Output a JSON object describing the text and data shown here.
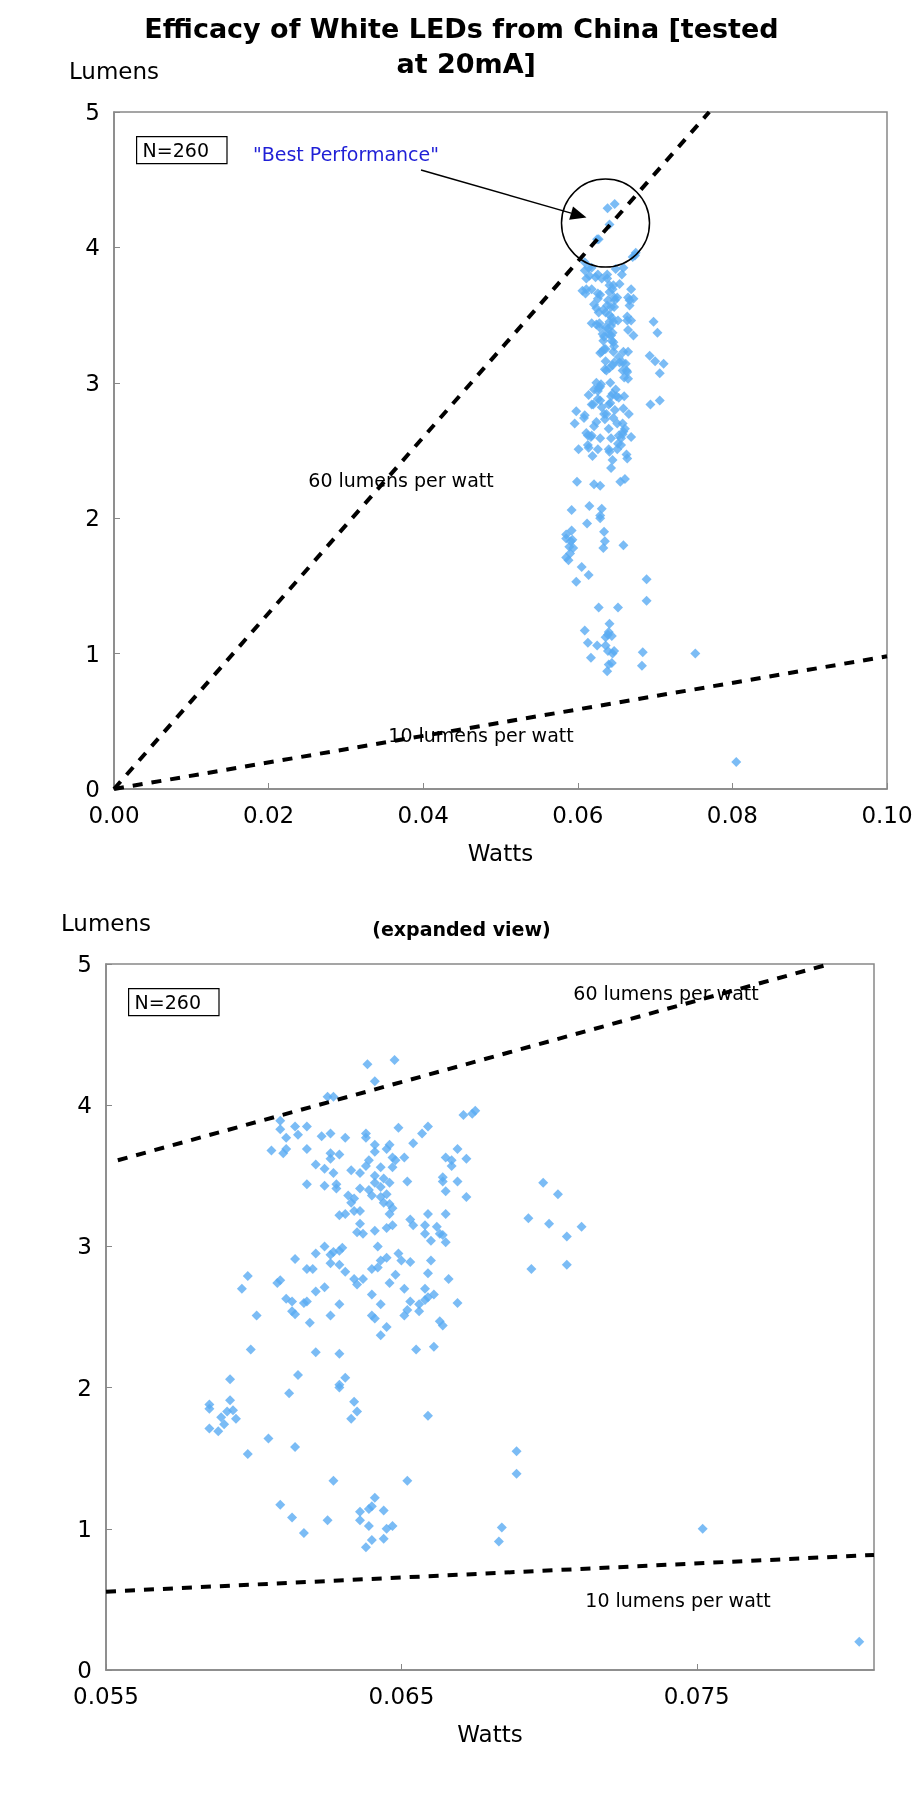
{
  "chart_data": [
    {
      "type": "scatter",
      "title": "Efficacy of White LEDs from China [tested at 20mA]",
      "xlabel": "Watts",
      "ylabel": "Lumens",
      "xlim": [
        0,
        0.1
      ],
      "ylim": [
        0,
        5
      ],
      "xticks": [
        {
          "value": 0,
          "label": "0.00"
        },
        0.02,
        0.04,
        0.06,
        0.08,
        {
          "value": 0.1,
          "label": "0.10"
        }
      ],
      "yticks": [
        0,
        1,
        2,
        3,
        4,
        5
      ],
      "grid": false,
      "marker": "diamond",
      "annotations": [
        "N=260",
        "\"Best Performance\"",
        "60 lumens per watt",
        "10 lumens per watt"
      ],
      "series": [
        {
          "color": "#5aabf2",
          "x": [
            0.06385,
            0.06477,
            0.0641,
            0.0625,
            0.0627,
            0.0609,
            0.0609,
            0.0614,
            0.0618,
            0.0615,
            0.0611,
            0.0606,
            0.0611,
            0.061,
            0.0618,
            0.0623,
            0.0626,
            0.0631,
            0.0638,
            0.0638,
            0.0649,
            0.0659,
            0.0657,
            0.0654,
            0.0671,
            0.0675,
            0.0674,
            0.0626,
            0.0629,
            0.0626,
            0.0621,
            0.0624,
            0.0627,
            0.0633,
            0.0636,
            0.0641,
            0.0641,
            0.0645,
            0.0646,
            0.0639,
            0.0638,
            0.0643,
            0.0647,
            0.0648,
            0.0651,
            0.0647,
            0.0641,
            0.0644,
            0.0646,
            0.0641,
            0.0643,
            0.0639,
            0.064,
            0.0643,
            0.0645,
            0.0644,
            0.0646,
            0.0647,
            0.0646,
            0.0636,
            0.0632,
            0.0634,
            0.0633,
            0.0618,
            0.0624,
            0.0628,
            0.0628,
            0.0652,
            0.0665,
            0.0667,
            0.0667,
            0.0669,
            0.0672,
            0.0664,
            0.0664,
            0.0669,
            0.0665,
            0.0672,
            0.0629,
            0.0631,
            0.0634,
            0.0636,
            0.0636,
            0.0635,
            0.0637,
            0.0641,
            0.0645,
            0.0647,
            0.0653,
            0.0654,
            0.0659,
            0.0658,
            0.0658,
            0.066,
            0.0662,
            0.0663,
            0.0664,
            0.0665,
            0.0665,
            0.0624,
            0.0621,
            0.0626,
            0.0627,
            0.0629,
            0.063,
            0.0614,
            0.0618,
            0.062,
            0.0626,
            0.0629,
            0.0631,
            0.0634,
            0.0635,
            0.0637,
            0.0642,
            0.064,
            0.0642,
            0.0643,
            0.0645,
            0.0649,
            0.065,
            0.0653,
            0.0648,
            0.066,
            0.0659,
            0.0666,
            0.0646,
            0.0651,
            0.0658,
            0.0598,
            0.0596,
            0.0608,
            0.0609,
            0.0611,
            0.0613,
            0.0617,
            0.0618,
            0.0613,
            0.0614,
            0.0601,
            0.0619,
            0.0621,
            0.0624,
            0.0629,
            0.0626,
            0.064,
            0.0643,
            0.064,
            0.0641,
            0.0645,
            0.0643,
            0.0653,
            0.0656,
            0.0658,
            0.0659,
            0.0661,
            0.0652,
            0.0651,
            0.0656,
            0.0669,
            0.0663,
            0.0664,
            0.0599,
            0.0621,
            0.0629,
            0.0655,
            0.0661,
            0.0592,
            0.0615,
            0.0631,
            0.0629,
            0.0629,
            0.0612,
            0.0592,
            0.0585,
            0.0585,
            0.0593,
            0.0591,
            0.0589,
            0.0594,
            0.059,
            0.0585,
            0.0588,
            0.0634,
            0.0635,
            0.0633,
            0.0659,
            0.0605,
            0.0614,
            0.0598,
            0.0627,
            0.0652,
            0.0609,
            0.0613,
            0.0617,
            0.0625,
            0.0641,
            0.064,
            0.0639,
            0.0636,
            0.0644,
            0.0636,
            0.0639,
            0.0645,
            0.0647,
            0.0644,
            0.064,
            0.0638,
            0.0684,
            0.0683,
            0.0689,
            0.0689,
            0.0698,
            0.0703,
            0.0693,
            0.07,
            0.0711,
            0.0706,
            0.0694,
            0.0706,
            0.0752,
            0.0805
          ],
          "values": [
            4.29,
            4.32,
            4.17,
            4.06,
            4.06,
            3.89,
            3.83,
            3.85,
            3.85,
            3.79,
            3.77,
            3.68,
            3.69,
            3.66,
            3.69,
            3.78,
            3.8,
            3.77,
            3.8,
            3.77,
            3.84,
            3.85,
            3.8,
            3.73,
            3.93,
            3.96,
            3.94,
            3.66,
            3.65,
            3.62,
            3.58,
            3.55,
            3.52,
            3.54,
            3.52,
            3.72,
            3.67,
            3.69,
            3.72,
            3.61,
            3.57,
            3.56,
            3.63,
            3.61,
            3.63,
            3.56,
            3.5,
            3.48,
            3.45,
            3.45,
            3.42,
            3.4,
            3.36,
            3.35,
            3.37,
            3.31,
            3.3,
            3.27,
            3.23,
            3.41,
            3.36,
            3.34,
            3.31,
            3.44,
            3.43,
            3.44,
            3.41,
            3.46,
            3.63,
            3.61,
            3.57,
            3.69,
            3.62,
            3.49,
            3.46,
            3.46,
            3.39,
            3.35,
            3.22,
            3.23,
            3.25,
            3.25,
            3.16,
            3.1,
            3.09,
            3.11,
            3.13,
            3.15,
            3.19,
            3.15,
            3.23,
            3.15,
            3.09,
            3.04,
            3.14,
            3.09,
            3.08,
            3.23,
            3.03,
            3.0,
            2.95,
            2.94,
            2.96,
            2.97,
            2.99,
            2.91,
            2.84,
            2.84,
            2.88,
            2.87,
            2.82,
            2.77,
            2.73,
            2.77,
            3.0,
            2.84,
            2.85,
            2.9,
            2.92,
            2.95,
            2.9,
            2.89,
            2.8,
            2.9,
            2.81,
            2.77,
            2.74,
            2.7,
            2.7,
            2.79,
            2.7,
            2.74,
            2.76,
            2.63,
            2.61,
            2.6,
            2.61,
            2.54,
            2.52,
            2.51,
            2.46,
            2.68,
            2.71,
            2.59,
            2.51,
            2.66,
            2.59,
            2.51,
            2.49,
            2.43,
            2.37,
            2.61,
            2.59,
            2.62,
            2.64,
            2.66,
            2.55,
            2.51,
            2.54,
            2.6,
            2.47,
            2.44,
            2.27,
            2.25,
            2.24,
            2.27,
            2.29,
            2.06,
            2.09,
            2.07,
            2.0,
            2.02,
            1.96,
            1.91,
            1.88,
            1.85,
            1.84,
            1.83,
            1.79,
            1.78,
            1.74,
            1.71,
            1.69,
            1.9,
            1.83,
            1.78,
            1.8,
            1.64,
            1.58,
            1.53,
            1.34,
            1.34,
            1.17,
            1.08,
            0.97,
            1.06,
            1.22,
            1.16,
            1.14,
            1.12,
            1.13,
            1.06,
            1.02,
            1.0,
            1.02,
            0.93,
            0.92,
            0.87,
            1.01,
            0.91,
            1.55,
            1.39,
            3.45,
            3.37,
            3.2,
            3.16,
            3.14,
            3.07,
            2.84,
            2.87,
            1.0,
            0.2
          ]
        },
        {
          "type": "line",
          "color": "#000000",
          "marker": "none",
          "line_style": "dashed",
          "x": [
            0,
            0.077
          ],
          "values": [
            0,
            5
          ]
        },
        {
          "type": "line",
          "color": "#000000",
          "marker": "none",
          "line_style": "dashed",
          "x": [
            0,
            0.1
          ],
          "values": [
            0,
            0.98
          ]
        }
      ]
    },
    {
      "type": "scatter",
      "title": "(expanded view)",
      "xlabel": "Watts",
      "ylabel": "Lumens",
      "xlim": [
        0.055,
        0.081
      ],
      "ylim": [
        0,
        5
      ],
      "xticks": [
        0.055,
        0.065,
        0.075
      ],
      "yticks": [
        0,
        1,
        2,
        3,
        4,
        5
      ],
      "grid": false,
      "marker": "diamond",
      "annotations": [
        "N=260",
        "60 lumens per watt",
        "10 lumens per watt"
      ],
      "series": [
        {
          "color": "#5aabf2",
          "x": [
            0.06385,
            0.06477,
            0.0641,
            0.0625,
            0.0627,
            0.0609,
            0.0609,
            0.0614,
            0.0618,
            0.0615,
            0.0611,
            0.0606,
            0.0611,
            0.061,
            0.0618,
            0.0623,
            0.0626,
            0.0631,
            0.0638,
            0.0638,
            0.0649,
            0.0659,
            0.0657,
            0.0654,
            0.0671,
            0.0675,
            0.0674,
            0.0626,
            0.0629,
            0.0626,
            0.0621,
            0.0624,
            0.0627,
            0.0633,
            0.0636,
            0.0641,
            0.0641,
            0.0645,
            0.0646,
            0.0639,
            0.0638,
            0.0643,
            0.0647,
            0.0648,
            0.0651,
            0.0647,
            0.0641,
            0.0644,
            0.0646,
            0.0641,
            0.0643,
            0.0639,
            0.064,
            0.0643,
            0.0645,
            0.0644,
            0.0646,
            0.0647,
            0.0646,
            0.0636,
            0.0632,
            0.0634,
            0.0633,
            0.0618,
            0.0624,
            0.0628,
            0.0628,
            0.0652,
            0.0665,
            0.0667,
            0.0667,
            0.0669,
            0.0672,
            0.0664,
            0.0664,
            0.0669,
            0.0665,
            0.0672,
            0.0629,
            0.0631,
            0.0634,
            0.0636,
            0.0636,
            0.0635,
            0.0637,
            0.0641,
            0.0645,
            0.0647,
            0.0653,
            0.0654,
            0.0659,
            0.0658,
            0.0658,
            0.066,
            0.0662,
            0.0663,
            0.0664,
            0.0665,
            0.0665,
            0.0624,
            0.0621,
            0.0626,
            0.0627,
            0.0629,
            0.063,
            0.0614,
            0.0618,
            0.062,
            0.0626,
            0.0629,
            0.0631,
            0.0634,
            0.0635,
            0.0637,
            0.0642,
            0.064,
            0.0642,
            0.0643,
            0.0645,
            0.0649,
            0.065,
            0.0653,
            0.0648,
            0.066,
            0.0659,
            0.0666,
            0.0646,
            0.0651,
            0.0658,
            0.0598,
            0.0596,
            0.0608,
            0.0609,
            0.0611,
            0.0613,
            0.0617,
            0.0618,
            0.0613,
            0.0614,
            0.0601,
            0.0619,
            0.0621,
            0.0624,
            0.0629,
            0.0626,
            0.064,
            0.0643,
            0.064,
            0.0641,
            0.0645,
            0.0643,
            0.0653,
            0.0656,
            0.0658,
            0.0659,
            0.0661,
            0.0652,
            0.0651,
            0.0656,
            0.0669,
            0.0663,
            0.0664,
            0.0599,
            0.0621,
            0.0629,
            0.0655,
            0.0661,
            0.0592,
            0.0615,
            0.0631,
            0.0629,
            0.0629,
            0.0612,
            0.0592,
            0.0585,
            0.0585,
            0.0593,
            0.0591,
            0.0589,
            0.0594,
            0.059,
            0.0585,
            0.0588,
            0.0634,
            0.0635,
            0.0633,
            0.0659,
            0.0605,
            0.0614,
            0.0598,
            0.0627,
            0.0652,
            0.0609,
            0.0613,
            0.0617,
            0.0625,
            0.0641,
            0.064,
            0.0639,
            0.0636,
            0.0644,
            0.0636,
            0.0639,
            0.0645,
            0.0647,
            0.0644,
            0.064,
            0.0638,
            0.0684,
            0.0683,
            0.0689,
            0.0689,
            0.0698,
            0.0703,
            0.0693,
            0.07,
            0.0711,
            0.0706,
            0.0694,
            0.0706,
            0.0752,
            0.0805
          ],
          "values": [
            4.29,
            4.32,
            4.17,
            4.06,
            4.06,
            3.89,
            3.83,
            3.85,
            3.85,
            3.79,
            3.77,
            3.68,
            3.69,
            3.66,
            3.69,
            3.78,
            3.8,
            3.77,
            3.8,
            3.77,
            3.84,
            3.85,
            3.8,
            3.73,
            3.93,
            3.96,
            3.94,
            3.66,
            3.65,
            3.62,
            3.58,
            3.55,
            3.52,
            3.54,
            3.52,
            3.72,
            3.67,
            3.69,
            3.72,
            3.61,
            3.57,
            3.56,
            3.63,
            3.61,
            3.63,
            3.56,
            3.5,
            3.48,
            3.45,
            3.45,
            3.42,
            3.4,
            3.36,
            3.35,
            3.37,
            3.31,
            3.3,
            3.27,
            3.23,
            3.41,
            3.36,
            3.34,
            3.31,
            3.44,
            3.43,
            3.44,
            3.41,
            3.46,
            3.63,
            3.61,
            3.57,
            3.69,
            3.62,
            3.49,
            3.46,
            3.46,
            3.39,
            3.35,
            3.22,
            3.23,
            3.25,
            3.25,
            3.16,
            3.1,
            3.09,
            3.11,
            3.13,
            3.15,
            3.19,
            3.15,
            3.23,
            3.15,
            3.09,
            3.04,
            3.14,
            3.09,
            3.08,
            3.23,
            3.03,
            3.0,
            2.95,
            2.94,
            2.96,
            2.97,
            2.99,
            2.91,
            2.84,
            2.84,
            2.88,
            2.87,
            2.82,
            2.77,
            2.73,
            2.77,
            3.0,
            2.84,
            2.85,
            2.9,
            2.92,
            2.95,
            2.9,
            2.89,
            2.8,
            2.9,
            2.81,
            2.77,
            2.74,
            2.7,
            2.7,
            2.79,
            2.7,
            2.74,
            2.76,
            2.63,
            2.61,
            2.6,
            2.61,
            2.54,
            2.52,
            2.51,
            2.46,
            2.68,
            2.71,
            2.59,
            2.51,
            2.66,
            2.59,
            2.51,
            2.49,
            2.43,
            2.37,
            2.61,
            2.59,
            2.62,
            2.64,
            2.66,
            2.55,
            2.51,
            2.54,
            2.6,
            2.47,
            2.44,
            2.27,
            2.25,
            2.24,
            2.27,
            2.29,
            2.06,
            2.09,
            2.07,
            2.0,
            2.02,
            1.96,
            1.91,
            1.88,
            1.85,
            1.84,
            1.83,
            1.79,
            1.78,
            1.74,
            1.71,
            1.69,
            1.9,
            1.83,
            1.78,
            1.8,
            1.64,
            1.58,
            1.53,
            1.34,
            1.34,
            1.17,
            1.08,
            0.97,
            1.06,
            1.22,
            1.16,
            1.14,
            1.12,
            1.13,
            1.06,
            1.02,
            1.0,
            1.02,
            0.93,
            0.92,
            0.87,
            1.01,
            0.91,
            1.55,
            1.39,
            3.45,
            3.37,
            3.2,
            3.16,
            3.14,
            3.07,
            2.84,
            2.87,
            1.0,
            0.2
          ]
        },
        {
          "type": "line",
          "color": "#000000",
          "marker": "none",
          "line_style": "dashed",
          "x": [
            0.0554,
            0.0795
          ],
          "values": [
            3.61,
            5.0
          ]
        },
        {
          "type": "line",
          "color": "#000000",
          "marker": "none",
          "line_style": "dashed",
          "x": [
            0.055,
            0.081
          ],
          "values": [
            0.555,
            0.815
          ]
        }
      ]
    }
  ]
}
